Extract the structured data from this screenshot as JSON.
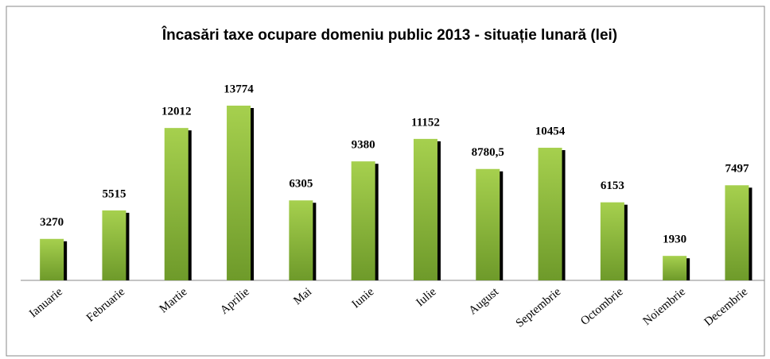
{
  "chart_data": {
    "type": "bar",
    "title": "Încasări taxe ocupare domeniu public 2013 - situație lunară  (lei)",
    "categories": [
      "Ianuarie",
      "Februarie",
      "Martie",
      "Aprilie",
      "Mai",
      "Iunie",
      "Iulie",
      "August",
      "Septembrie",
      "Octombrie",
      "Noiembrie",
      "Decembrie"
    ],
    "values": [
      3270,
      5515,
      12012,
      13774,
      6305,
      9380,
      11152,
      8780.5,
      10454,
      6153,
      1930,
      7497
    ],
    "value_labels": [
      "3270",
      "5515",
      "12012",
      "13774",
      "6305",
      "9380",
      "11152",
      "8780,5",
      "10454",
      "6153",
      "1930",
      "7497"
    ],
    "color": "#8cbc3c"
  }
}
